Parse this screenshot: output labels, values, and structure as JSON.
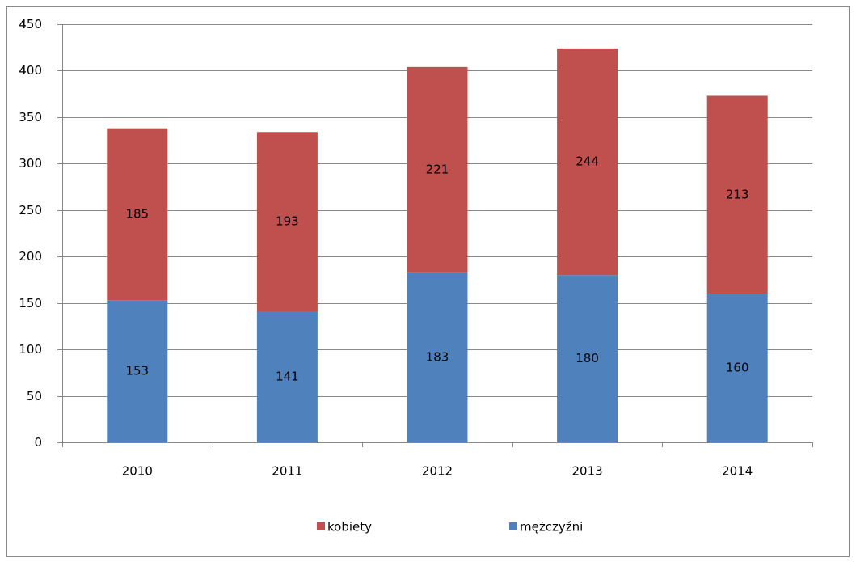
{
  "chart_data": {
    "type": "stacked_bar",
    "categories": [
      "2010",
      "2011",
      "2012",
      "2013",
      "2014"
    ],
    "series": [
      {
        "name": "mężczyźni",
        "color": "#4f81bd",
        "values": [
          153,
          141,
          183,
          180,
          160
        ]
      },
      {
        "name": "kobiety",
        "color": "#c0504d",
        "values": [
          185,
          193,
          221,
          244,
          213
        ]
      }
    ],
    "ylim": [
      0,
      450
    ],
    "yticks": [
      0,
      50,
      100,
      150,
      200,
      250,
      300,
      350,
      400,
      450
    ],
    "grid": true,
    "legend": "bottom"
  }
}
